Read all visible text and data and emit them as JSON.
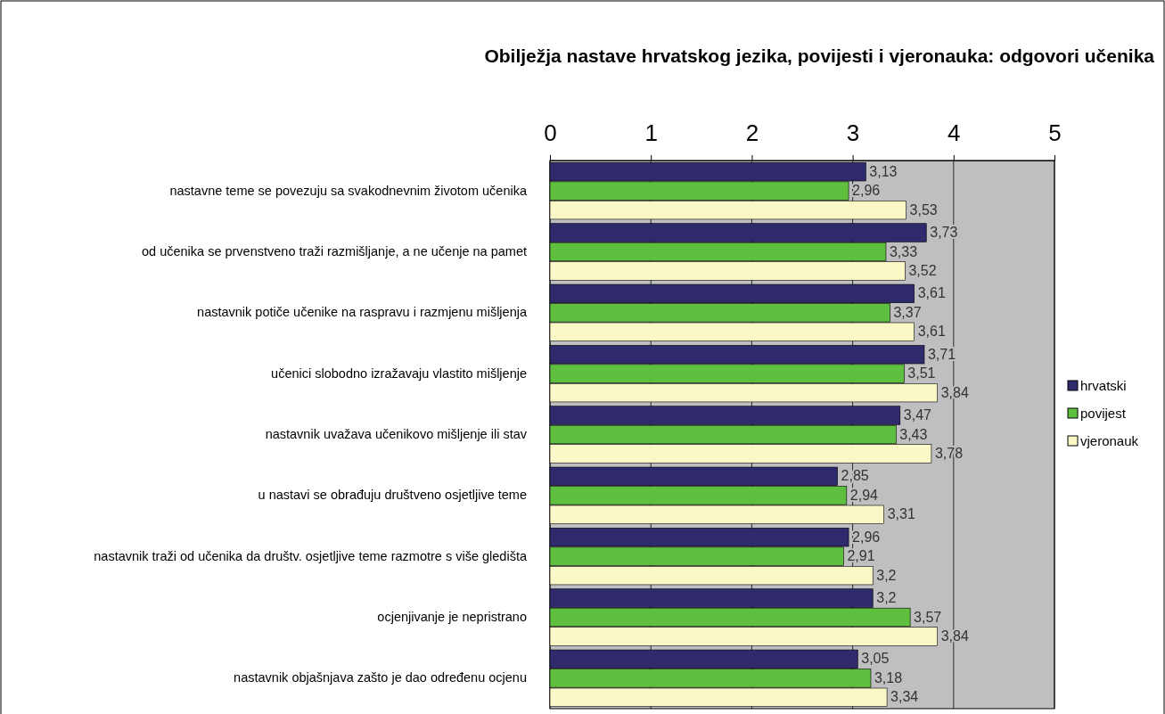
{
  "chart_data": {
    "type": "bar",
    "orientation": "horizontal",
    "title": "Obilježja nastave hrvatskog jezika, povijesti i vjeronauka: odgovori učenika",
    "categories": [
      "nastavne teme se povezuju sa svakodnevnim  životom učenika",
      "od učenika se prvenstveno traži razmišljanje, a ne učenje na pamet",
      "nastavnik potiče  učenike na raspravu i razmjenu mišljenja",
      "učenici slobodno izražavaju vlastito mišljenje",
      "nastavnik uvažava učenikovo mišljenje ili stav",
      "u nastavi se obrađuju društveno osjetljive teme",
      "nastavnik traži od učenika da društv. osjetljive teme razmotre s više gledišta",
      "ocjenjivanje je nepristrano",
      "nastavnik objašnjava zašto je dao određenu ocjenu"
    ],
    "series": [
      {
        "name": "hrvatski",
        "color": "#2e2a6b",
        "values": [
          3.13,
          3.73,
          3.61,
          3.71,
          3.47,
          2.85,
          2.96,
          3.2,
          3.05
        ],
        "value_labels": [
          "3,13",
          "3,73",
          "3,61",
          "3,71",
          "3,47",
          "2,85",
          "2,96",
          "3,2",
          "3,05"
        ]
      },
      {
        "name": "povijest",
        "color": "#5fbf3f",
        "values": [
          2.96,
          3.33,
          3.37,
          3.51,
          3.43,
          2.94,
          2.91,
          3.57,
          3.18
        ],
        "value_labels": [
          "2,96",
          "3,33",
          "3,37",
          "3,51",
          "3,43",
          "2,94",
          "2,91",
          "3,57",
          "3,18"
        ]
      },
      {
        "name": "vjeronauk",
        "color": "#fbf8c8",
        "values": [
          3.53,
          3.52,
          3.61,
          3.84,
          3.78,
          3.31,
          3.2,
          3.84,
          3.34
        ],
        "value_labels": [
          "3,53",
          "3,52",
          "3,61",
          "3,84",
          "3,78",
          "3,31",
          "3,2",
          "3,84",
          "3,34"
        ]
      }
    ],
    "xlim": [
      0,
      5
    ],
    "xticks": [
      0,
      1,
      2,
      3,
      4,
      5
    ],
    "grid": "x",
    "legend": "right"
  }
}
